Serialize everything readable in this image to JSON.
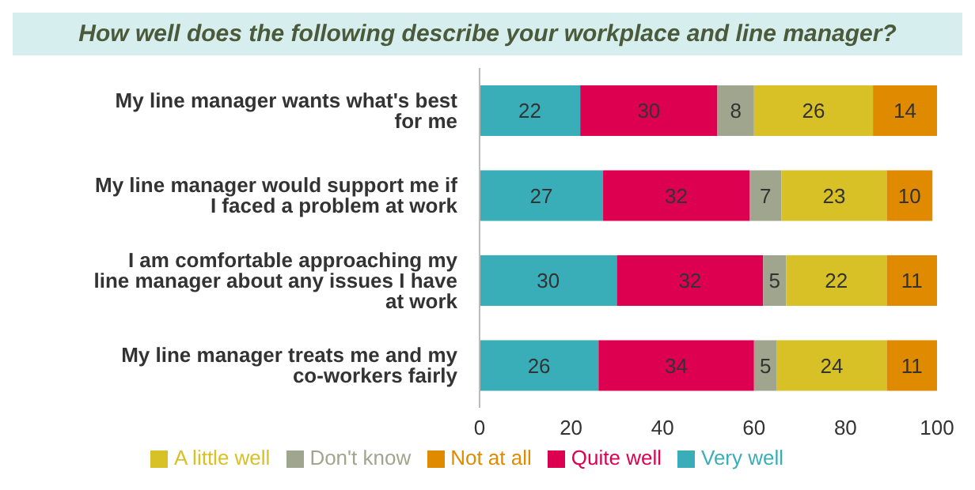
{
  "chart_data": {
    "type": "bar",
    "orientation": "horizontal",
    "stacked": true,
    "title": "How well does the following describe your workplace and line manager?",
    "categories": [
      "My line manager wants what's best for me",
      "My line manager would support me if I faced a problem at work",
      "I am comfortable approaching my line manager about any issues I have at work",
      "My line manager treats me and my co-workers fairly"
    ],
    "series": [
      {
        "name": "Very well",
        "color": "#3aaeb8",
        "values": [
          22,
          27,
          30,
          26
        ]
      },
      {
        "name": "Quite well",
        "color": "#de0050",
        "values": [
          30,
          32,
          32,
          34
        ]
      },
      {
        "name": "Don't know",
        "color": "#a0a58e",
        "values": [
          8,
          7,
          5,
          5
        ]
      },
      {
        "name": "A little well",
        "color": "#d8c126",
        "values": [
          26,
          23,
          22,
          24
        ]
      },
      {
        "name": "Not at all",
        "color": "#e08a00",
        "values": [
          14,
          10,
          11,
          11
        ]
      }
    ],
    "xlim": [
      0,
      100
    ],
    "xticks": [
      0,
      20,
      40,
      60,
      80,
      100
    ],
    "data_labels": true,
    "legend": "bottom",
    "grid": false
  }
}
